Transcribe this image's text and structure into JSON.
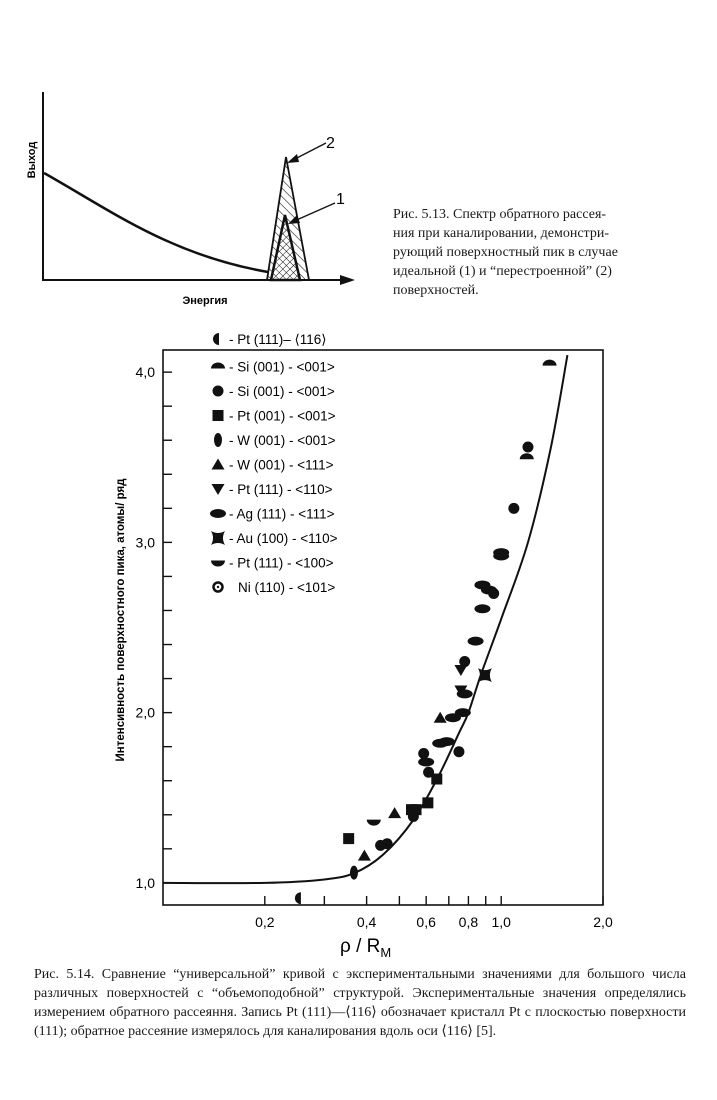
{
  "figure_5_13": {
    "y_label": "Выход",
    "x_label": "Энергия",
    "peak_labels": [
      "1",
      "2"
    ],
    "caption_lines": [
      "Рис. 5.13. Спектр обратного рассея-",
      "ния при каналировании, демонстри-",
      "рующий поверхностный пик в случае",
      "идеальной (1) и “перестроенной” (2)",
      "поверхностей."
    ]
  },
  "chart_data": {
    "type": "scatter",
    "title": "",
    "xlabel": "ρ / R",
    "xlabel_sub": "M",
    "ylabel": "Интенсивность поверхностного пика, атомы/ ряд",
    "xscale": "log",
    "xlim": [
      0.1,
      2.0
    ],
    "ylim": [
      0.87,
      4.13
    ],
    "x_ticks": [
      0.2,
      0.3,
      0.4,
      0.5,
      0.6,
      0.7,
      0.8,
      0.9,
      1.0,
      2.0
    ],
    "x_tick_labels": [
      {
        "value": 0.2,
        "label": "0,2"
      },
      {
        "value": 0.4,
        "label": "0,4"
      },
      {
        "value": 0.6,
        "label": "0,6"
      },
      {
        "value": 0.8,
        "label": "0,8"
      },
      {
        "value": 1.0,
        "label": "1,0"
      },
      {
        "value": 2.0,
        "label": "2,0"
      }
    ],
    "y_ticks": [
      1.0,
      1.2,
      1.4,
      1.6,
      1.8,
      2.0,
      2.2,
      2.4,
      2.6,
      2.8,
      3.0,
      3.2,
      3.4,
      3.6,
      3.8,
      4.0
    ],
    "y_tick_labels": [
      {
        "value": 1.0,
        "label": "1,0"
      },
      {
        "value": 2.0,
        "label": "2,0"
      },
      {
        "value": 3.0,
        "label": "3,0"
      },
      {
        "value": 4.0,
        "label": "4,0"
      }
    ],
    "grid": false,
    "legend_position": "top-left",
    "curve": {
      "name": "universal curve",
      "points": [
        [
          0.1,
          1.0
        ],
        [
          0.2,
          1.0
        ],
        [
          0.3,
          1.02
        ],
        [
          0.37,
          1.06
        ],
        [
          0.45,
          1.17
        ],
        [
          0.55,
          1.37
        ],
        [
          0.65,
          1.62
        ],
        [
          0.75,
          1.88
        ],
        [
          0.8,
          2.0
        ],
        [
          0.87,
          2.22
        ],
        [
          1.0,
          2.55
        ],
        [
          1.2,
          3.0
        ],
        [
          1.4,
          3.55
        ],
        [
          1.57,
          4.1
        ]
      ]
    },
    "series": [
      {
        "name": "- Pt (111)– ⟨116⟩",
        "marker": "half-left",
        "points": [
          [
            0.254,
            0.91
          ]
        ]
      },
      {
        "name": "- Si (001) - <001>",
        "marker": "half-top",
        "points": [
          [
            1.19,
            3.5
          ],
          [
            1.39,
            4.05
          ]
        ]
      },
      {
        "name": "- Si (001) - <001>",
        "marker": "circle",
        "points": [
          [
            0.44,
            1.22
          ],
          [
            0.46,
            1.23
          ],
          [
            0.55,
            1.39
          ],
          [
            0.59,
            1.76
          ],
          [
            0.61,
            1.65
          ],
          [
            0.75,
            1.77
          ],
          [
            0.78,
            2.3
          ],
          [
            0.95,
            2.7
          ],
          [
            1.09,
            3.2
          ],
          [
            1.2,
            3.56
          ]
        ]
      },
      {
        "name": "- Pt (001) - <001>",
        "marker": "square",
        "points": [
          [
            0.354,
            1.26
          ],
          [
            0.543,
            1.43
          ],
          [
            0.56,
            1.43
          ],
          [
            0.607,
            1.47
          ],
          [
            0.645,
            1.61
          ]
        ]
      },
      {
        "name": "- W (001) - <001>",
        "marker": "diamond",
        "points": [
          [
            0.367,
            1.06
          ]
        ]
      },
      {
        "name": "- W (001) - <111>",
        "marker": "triangle",
        "points": [
          [
            0.394,
            1.16
          ],
          [
            0.484,
            1.41
          ],
          [
            0.66,
            1.97
          ]
        ]
      },
      {
        "name": "- Pt (111) - <110>",
        "marker": "triangle-down",
        "points": [
          [
            0.76,
            2.13
          ],
          [
            0.76,
            2.25
          ]
        ]
      },
      {
        "name": "- Ag (111) - <111>",
        "marker": "ellipse",
        "points": [
          [
            0.6,
            1.71
          ],
          [
            0.66,
            1.82
          ],
          [
            0.69,
            1.83
          ],
          [
            0.72,
            1.97
          ],
          [
            0.77,
            2.0
          ],
          [
            0.78,
            2.11
          ],
          [
            0.84,
            2.42
          ],
          [
            0.88,
            2.61
          ],
          [
            0.88,
            2.75
          ],
          [
            0.92,
            2.72
          ],
          [
            1.0,
            2.94
          ],
          [
            1.0,
            2.92
          ]
        ]
      },
      {
        "name": "- Au (100) - <110>",
        "marker": "star",
        "points": [
          [
            0.895,
            2.22
          ]
        ]
      },
      {
        "name": "- Pt (111) - <100>",
        "marker": "half-bottom",
        "points": [
          [
            0.42,
            1.36
          ]
        ]
      },
      {
        "name": "Ni (110) - <101>",
        "marker": "dotted-circle",
        "points": []
      }
    ],
    "caption_lines": [
      "Рис. 5.14. Сравнение “универсальной” кривой с экспериментальными значениями для большого числа различных поверхностей с “объемоподобной” структурой. Экспериментальные значения определялись измерением обратного рассеяння. Запись Pt (111)—⟨116⟩ обозначает кристалл Pt с плоскостью поверхности (111); обратное рассеяние измерялось для каналирования вдоль оси ⟨116⟩ [5]."
    ]
  }
}
